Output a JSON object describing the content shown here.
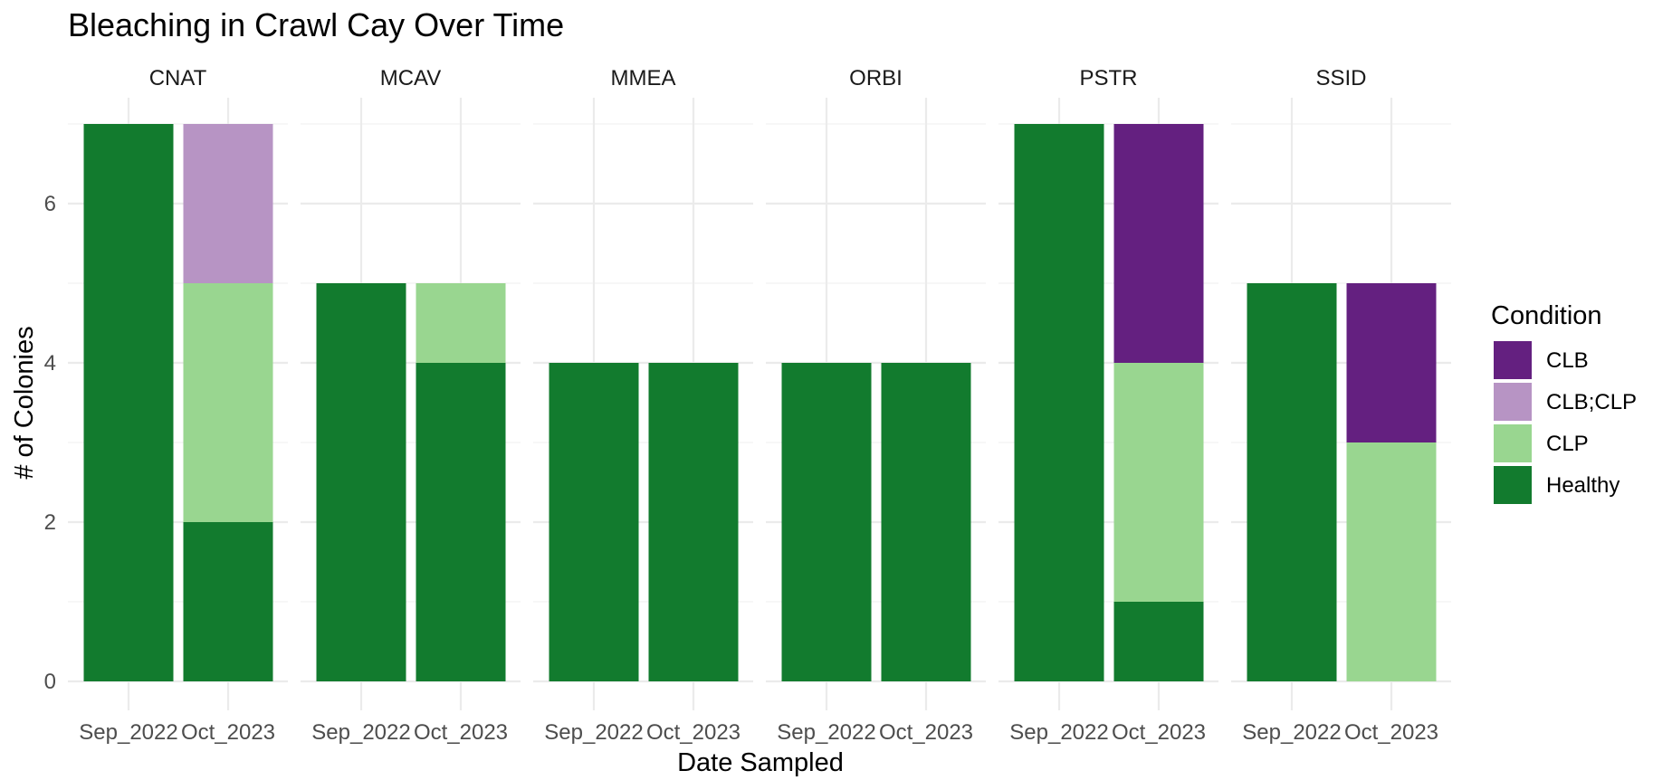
{
  "chart_data": {
    "type": "bar",
    "stacked": true,
    "faceted": true,
    "title": "Bleaching in Crawl Cay Over Time",
    "xlabel": "Date Sampled",
    "ylabel": "# of Colonies",
    "ylim": [
      0,
      7.35
    ],
    "yticks": [
      "0",
      "2",
      "4",
      "6"
    ],
    "grid": true,
    "categories": [
      "Sep_2022",
      "Oct_2023"
    ],
    "legend": {
      "title": "Condition",
      "position": "right",
      "entries": [
        {
          "name": "CLB",
          "color": "#642080"
        },
        {
          "name": "CLB;CLP",
          "color": "#b794c4"
        },
        {
          "name": "CLP",
          "color": "#99d690"
        },
        {
          "name": "Healthy",
          "color": "#127b2e"
        }
      ]
    },
    "stack_order": [
      "Healthy",
      "CLP",
      "CLB;CLP",
      "CLB"
    ],
    "facets": [
      {
        "name": "CNAT",
        "bars": [
          {
            "category": "Sep_2022",
            "values": {
              "Healthy": 7
            }
          },
          {
            "category": "Oct_2023",
            "values": {
              "Healthy": 2,
              "CLP": 3,
              "CLB;CLP": 2
            }
          }
        ]
      },
      {
        "name": "MCAV",
        "bars": [
          {
            "category": "Sep_2022",
            "values": {
              "Healthy": 5
            }
          },
          {
            "category": "Oct_2023",
            "values": {
              "Healthy": 4,
              "CLP": 1
            }
          }
        ]
      },
      {
        "name": "MMEA",
        "bars": [
          {
            "category": "Sep_2022",
            "values": {
              "Healthy": 4
            }
          },
          {
            "category": "Oct_2023",
            "values": {
              "Healthy": 4
            }
          }
        ]
      },
      {
        "name": "ORBI",
        "bars": [
          {
            "category": "Sep_2022",
            "values": {
              "Healthy": 4
            }
          },
          {
            "category": "Oct_2023",
            "values": {
              "Healthy": 4
            }
          }
        ]
      },
      {
        "name": "PSTR",
        "bars": [
          {
            "category": "Sep_2022",
            "values": {
              "Healthy": 7
            }
          },
          {
            "category": "Oct_2023",
            "values": {
              "Healthy": 1,
              "CLP": 3,
              "CLB": 3
            }
          }
        ]
      },
      {
        "name": "SSID",
        "bars": [
          {
            "category": "Sep_2022",
            "values": {
              "Healthy": 5
            }
          },
          {
            "category": "Oct_2023",
            "values": {
              "CLP": 3,
              "CLB": 2
            }
          }
        ]
      }
    ]
  }
}
